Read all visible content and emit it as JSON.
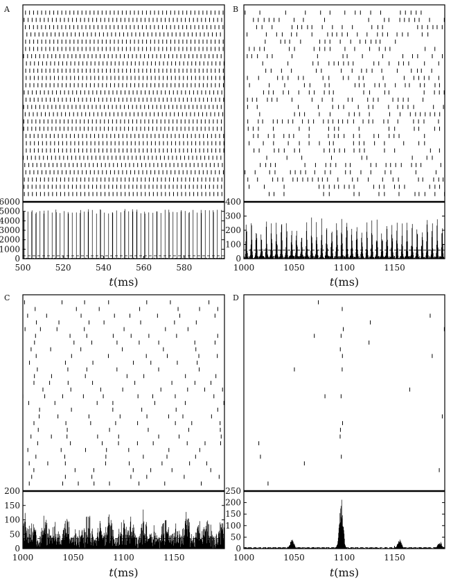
{
  "chart_data": [
    {
      "panel": "A",
      "type": "raster+histogram",
      "x_ticks": [
        500,
        520,
        540,
        560,
        580
      ],
      "xlim": [
        500,
        600
      ],
      "y_ticks": [
        0,
        1000,
        2000,
        3000,
        4000,
        5000,
        6000
      ],
      "ylim": [
        0,
        6000
      ],
      "xlabel_var": "t",
      "xlabel_unit": "(ms)",
      "raster_rows": 26,
      "spike_period_ms": 2.0,
      "histogram_peak_mean": 5000,
      "mean_rate_line": 300
    },
    {
      "panel": "B",
      "type": "raster+histogram",
      "x_ticks": [
        1000,
        1050,
        1100,
        1150
      ],
      "xlim": [
        1000,
        1200
      ],
      "y_ticks": [
        0,
        100,
        200,
        300,
        400
      ],
      "ylim": [
        0,
        400
      ],
      "xlabel_var": "t",
      "xlabel_unit": "(ms)",
      "raster_rows": 26,
      "spike_period_ms": 5.0,
      "histogram_peak_mean": 200,
      "mean_rate_line": 60
    },
    {
      "panel": "C",
      "type": "raster+histogram",
      "x_ticks": [
        1000,
        1050,
        1100,
        1150
      ],
      "xlim": [
        1000,
        1200
      ],
      "y_ticks": [
        0,
        50,
        100,
        150,
        200
      ],
      "ylim": [
        0,
        200
      ],
      "xlabel_var": "t",
      "xlabel_unit": "(ms)",
      "raster_rows": 28,
      "histogram_peak_mean": 100,
      "mean_rate_line": 35
    },
    {
      "panel": "D",
      "type": "raster+histogram",
      "x_ticks": [
        1000,
        1050,
        1100,
        1150
      ],
      "xlim": [
        1000,
        1200
      ],
      "y_ticks": [
        0,
        50,
        100,
        150,
        200,
        250
      ],
      "ylim": [
        0,
        250
      ],
      "xlabel_var": "t",
      "xlabel_unit": "(ms)",
      "raster_rows": 28,
      "histogram_bursts": [
        {
          "t": 1048,
          "peak": 40
        },
        {
          "t": 1097,
          "peak": 200
        },
        {
          "t": 1155,
          "peak": 35
        },
        {
          "t": 1195,
          "peak": 25
        }
      ],
      "mean_rate_line": 5
    }
  ]
}
